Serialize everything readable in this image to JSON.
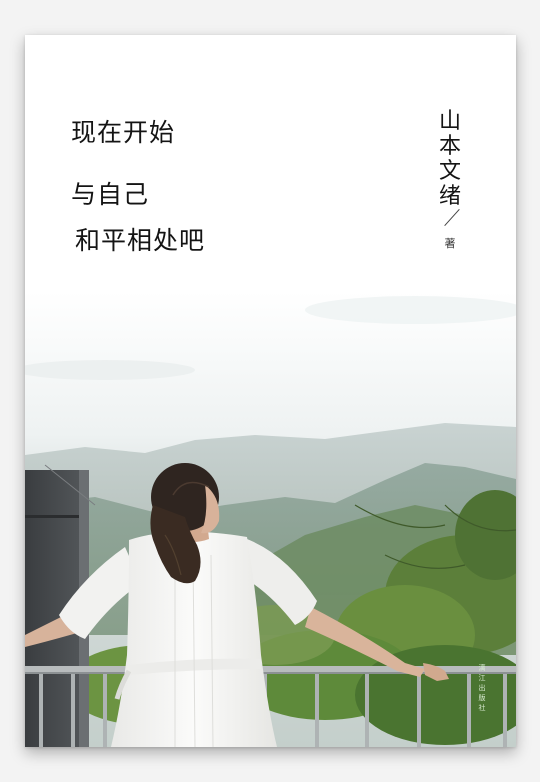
{
  "book": {
    "title_lines": [
      "现在开始",
      "与自己",
      "和平相处吧"
    ],
    "author": "山本文绪",
    "author_role": "著",
    "publisher": "漓江出版社"
  },
  "colors": {
    "sky": "#ffffff",
    "mountain": "#8fa3a0",
    "foliage": "#5f8a3c",
    "text": "#141414"
  }
}
